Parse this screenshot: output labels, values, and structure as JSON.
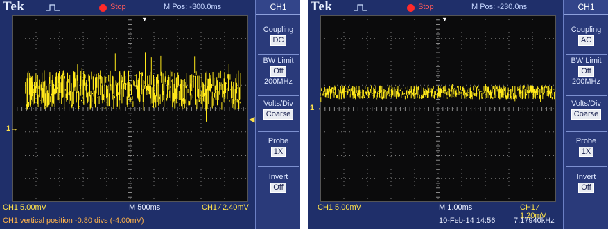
{
  "colors": {
    "trace": "#ffe81a",
    "run_stop_dot": "#ff2a2a",
    "run_stop_text": "#ff5a5a",
    "panel_bg": "#1f2f6a",
    "screen_bg": "#0b0b0c"
  },
  "icons": {
    "trigger": "rising-edge-pulse-icon",
    "run_state": "red-dot-icon"
  },
  "left": {
    "brand": "Tek",
    "run_state": "Stop",
    "m_pos": "M Pos: -300.0ms",
    "channel_marker": "1→",
    "menu": {
      "title": "CH1",
      "coupling_label": "Coupling",
      "coupling_value": "DC",
      "bw_label": "BW Limit",
      "bw_value": "Off",
      "bw_freq": "200MHz",
      "volts_label": "Volts/Div",
      "volts_value": "Coarse",
      "probe_label": "Probe",
      "probe_value": "1X",
      "invert_label": "Invert",
      "invert_value": "Off"
    },
    "status": {
      "ch_scale": "CH1  5.00mV",
      "timebase": "M 500ms",
      "trigger": "CH1 ∕ 2.40mV",
      "message": "CH1 vertical position -0.80 divs (-4.00mV)"
    },
    "trace": {
      "center_div": 0.8,
      "noise_band_div": 1.7,
      "spike_div": 3.3,
      "start_div": 0.55,
      "end_div": 9.7
    }
  },
  "right": {
    "brand": "Tek",
    "run_state": "Stop",
    "m_pos": "M Pos: -230.0ns",
    "channel_marker": "1→",
    "menu": {
      "title": "CH1",
      "coupling_label": "Coupling",
      "coupling_value": "AC",
      "bw_label": "BW Limit",
      "bw_value": "Off",
      "bw_freq": "200MHz",
      "volts_label": "Volts/Div",
      "volts_value": "Coarse",
      "probe_label": "Probe",
      "probe_value": "1X",
      "invert_label": "Invert",
      "invert_value": "Off"
    },
    "status": {
      "ch_scale": "CH1  5.00mV",
      "timebase": "M 1.00ms",
      "trigger": "CH1 ∕ 1.20mV",
      "date": "10-Feb-14 14:56",
      "freq": "7.17940kHz"
    },
    "trace": {
      "center_div": 0.7,
      "noise_band_div": 0.6,
      "spike_div": 0.9,
      "start_div": 0.0,
      "end_div": 10.0
    }
  }
}
